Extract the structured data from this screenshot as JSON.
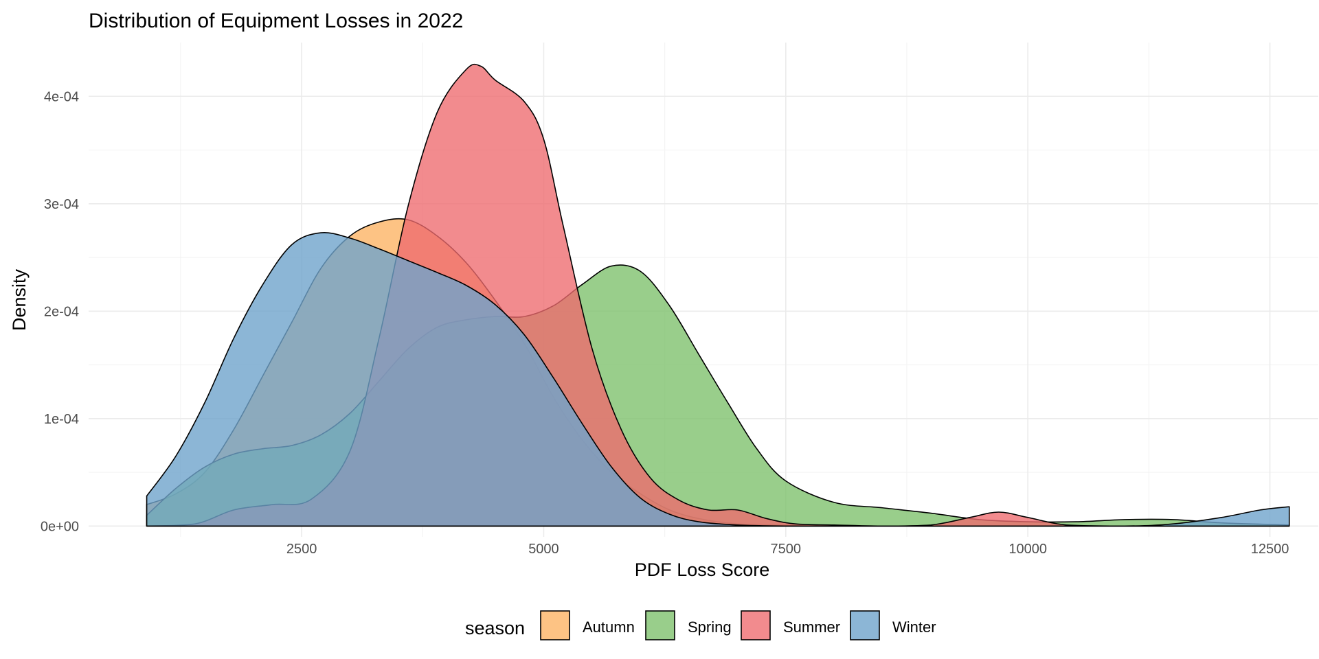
{
  "chart_data": {
    "type": "area",
    "title": "Distribution of Equipment Losses in 2022",
    "xlabel": "PDF Loss Score",
    "ylabel": "Density",
    "xlim": [
      300,
      13000
    ],
    "ylim": [
      -1e-05,
      0.00045
    ],
    "xticks": [
      2500,
      5000,
      7500,
      10000,
      12500
    ],
    "xtick_labels": [
      "2500",
      "5000",
      "7500",
      "10000",
      "12500"
    ],
    "yticks": [
      0,
      0.0001,
      0.0002,
      0.0003,
      0.0004
    ],
    "ytick_labels": [
      "0e+00",
      "1e-04",
      "2e-04",
      "3e-04",
      "4e-04"
    ],
    "grid": true,
    "legend": {
      "title": "season",
      "position": "bottom"
    },
    "series": [
      {
        "name": "Autumn",
        "color": "#FDB86E",
        "opacity": 0.85,
        "x": [
          900,
          1200,
          1500,
          1800,
          2100,
          2400,
          2700,
          3000,
          3300,
          3600,
          3900,
          4200,
          4500,
          4800,
          5100,
          5400,
          5700,
          6000,
          6300,
          6600,
          7000,
          7500,
          8000,
          9000,
          10000,
          11000,
          12000,
          12700
        ],
        "y": [
          2e-05,
          3e-05,
          5e-05,
          9e-05,
          0.00014,
          0.00019,
          0.00024,
          0.00027,
          0.000283,
          0.000285,
          0.00027,
          0.000245,
          0.00021,
          0.00017,
          0.00012,
          8e-05,
          5e-05,
          3e-05,
          1.5e-05,
          7e-06,
          2e-06,
          1e-06,
          0,
          0,
          0,
          0,
          0,
          0
        ]
      },
      {
        "name": "Spring",
        "color": "#7FC26E",
        "opacity": 0.8,
        "x": [
          900,
          1200,
          1500,
          1800,
          2100,
          2400,
          2700,
          3000,
          3300,
          3600,
          3900,
          4200,
          4500,
          4800,
          5100,
          5400,
          5700,
          6000,
          6300,
          6600,
          6900,
          7200,
          7500,
          8000,
          8500,
          9000,
          9500,
          10000,
          10500,
          11000,
          11500,
          12000,
          12700
        ],
        "y": [
          1e-05,
          3.5e-05,
          5.5e-05,
          6.7e-05,
          7.2e-05,
          7.5e-05,
          8.5e-05,
          0.000105,
          0.000135,
          0.000165,
          0.000185,
          0.000192,
          0.000195,
          0.000195,
          0.000205,
          0.000225,
          0.000242,
          0.000237,
          0.000205,
          0.00016,
          0.000115,
          7.2e-05,
          4.2e-05,
          2.2e-05,
          1.7e-05,
          1.2e-05,
          6e-06,
          4e-06,
          4e-06,
          6e-06,
          6e-06,
          3e-06,
          1e-06
        ]
      },
      {
        "name": "Summer",
        "color": "#EE6A6E",
        "opacity": 0.78,
        "x": [
          900,
          1400,
          1800,
          2200,
          2600,
          3000,
          3300,
          3600,
          3900,
          4200,
          4350,
          4500,
          4800,
          5000,
          5200,
          5500,
          5800,
          6100,
          6400,
          6700,
          7000,
          7300,
          7600,
          8000,
          8500,
          9000,
          9400,
          9700,
          10000,
          10400,
          11000,
          12000,
          12700
        ],
        "y": [
          0,
          2e-06,
          1.5e-05,
          2e-05,
          2.5e-05,
          7e-05,
          0.000175,
          0.000298,
          0.000385,
          0.000425,
          0.000428,
          0.000415,
          0.000395,
          0.00036,
          0.00028,
          0.000165,
          9e-05,
          4.5e-05,
          2.4e-05,
          1.5e-05,
          1.5e-05,
          7e-06,
          2e-06,
          1e-06,
          0,
          1e-06,
          8e-06,
          1.3e-05,
          8e-06,
          1e-06,
          0,
          0,
          0
        ]
      },
      {
        "name": "Winter",
        "color": "#6FA4CC",
        "opacity": 0.8,
        "x": [
          900,
          1200,
          1500,
          1800,
          2100,
          2400,
          2700,
          3000,
          3300,
          3600,
          3900,
          4200,
          4500,
          4800,
          5100,
          5400,
          5700,
          6000,
          6300,
          6600,
          7000,
          7500,
          8000,
          9000,
          10000,
          11000,
          11500,
          12000,
          12400,
          12700
        ],
        "y": [
          2.8e-05,
          6.5e-05,
          0.000115,
          0.000175,
          0.000225,
          0.000262,
          0.000273,
          0.000268,
          0.000258,
          0.000247,
          0.000236,
          0.000224,
          0.000206,
          0.000178,
          0.000138,
          9.5e-05,
          5.5e-05,
          2.6e-05,
          1.1e-05,
          4e-06,
          1e-06,
          0,
          0,
          0,
          0,
          0,
          2e-06,
          8e-06,
          1.5e-05,
          1.8e-05
        ]
      }
    ]
  }
}
